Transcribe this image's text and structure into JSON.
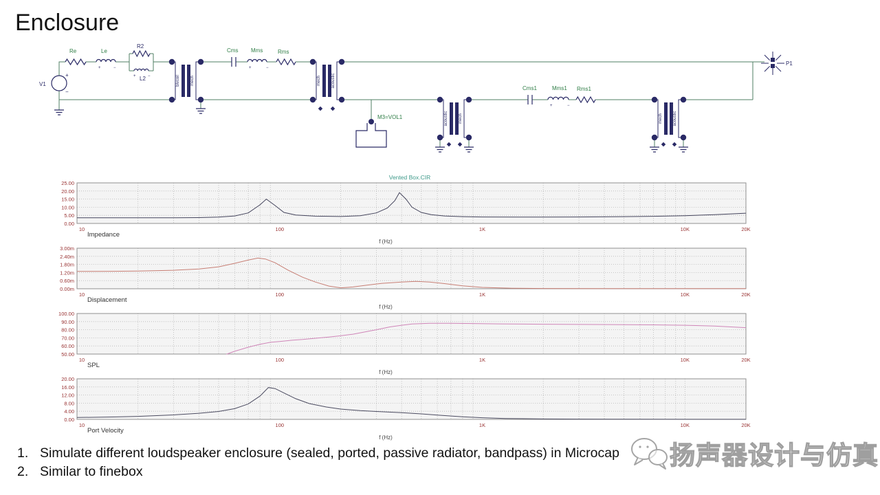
{
  "slide": {
    "title": "Enclosure"
  },
  "bullets": [
    {
      "num": "1.",
      "text": "Simulate different loudspeaker enclosure (sealed, ported, passive radiator, bandpass) in Microcap"
    },
    {
      "num": "2.",
      "text": "Similar to finebox"
    }
  ],
  "watermark": {
    "text": "扬声器设计与仿真",
    "logo": "wechat-bubbles-icon",
    "stroke_color": "#9f9f9f"
  },
  "circuit": {
    "source_label": "V1",
    "components": {
      "re": "Re",
      "le": "Le",
      "r2": "R2",
      "l2": "L2",
      "cms": "Cms",
      "mms": "Mms",
      "rms": "Rms",
      "cms1": "Cms1",
      "mms1": "Mms1",
      "rms1": "Rms1",
      "vol": "M3=VOL1",
      "p1": "P1"
    },
    "transformers": [
      {
        "left": "blvcoil",
        "right": "mech"
      },
      {
        "left": "mech",
        "right": "acoustic"
      },
      {
        "left": "acoustic",
        "right": "mech"
      },
      {
        "left": "mech",
        "right": "acoustic"
      }
    ],
    "colors": {
      "wire": "#4f7f63",
      "component": "#2a2a66",
      "label_green": "#2f7d46",
      "label_navy": "#2a2a66"
    }
  },
  "chart_colors": {
    "tick": "#993333",
    "title": "#3f9a8a",
    "grid": "#b8b8b8",
    "border": "#8f8f8f",
    "plot_bg": "#f4f4f4",
    "name_label": "#333333"
  },
  "chart_data": [
    {
      "type": "line",
      "name": "Impedance",
      "plot_title": "Vented Box.CIR",
      "xlabel": "f (Hz)",
      "x_scale": "log",
      "xlim": [
        10,
        20000
      ],
      "ylim": [
        0,
        25
      ],
      "x_ticks": [
        "10",
        "100",
        "1K",
        "10K",
        "20K"
      ],
      "x_tick_values": [
        10,
        100,
        1000,
        10000,
        20000
      ],
      "y_ticks": [
        "25.00",
        "20.00",
        "15.00",
        "10.00",
        "5.00",
        "0.00"
      ],
      "line_color": "#44445c",
      "points": [
        [
          10,
          3.5
        ],
        [
          20,
          3.5
        ],
        [
          30,
          3.5
        ],
        [
          40,
          3.6
        ],
        [
          50,
          3.9
        ],
        [
          60,
          4.6
        ],
        [
          70,
          6.5
        ],
        [
          80,
          11.5
        ],
        [
          86,
          15
        ],
        [
          95,
          11
        ],
        [
          105,
          6.8
        ],
        [
          120,
          5.2
        ],
        [
          150,
          4.5
        ],
        [
          200,
          4.3
        ],
        [
          250,
          4.8
        ],
        [
          300,
          6.5
        ],
        [
          340,
          9.5
        ],
        [
          370,
          14
        ],
        [
          390,
          19
        ],
        [
          420,
          15
        ],
        [
          450,
          10
        ],
        [
          500,
          6.8
        ],
        [
          560,
          5.4
        ],
        [
          650,
          4.6
        ],
        [
          800,
          4.2
        ],
        [
          1000,
          4.0
        ],
        [
          1500,
          3.9
        ],
        [
          2000,
          3.9
        ],
        [
          3000,
          4.0
        ],
        [
          5000,
          4.2
        ],
        [
          7000,
          4.4
        ],
        [
          10000,
          4.8
        ],
        [
          14000,
          5.4
        ],
        [
          20000,
          6.3
        ]
      ]
    },
    {
      "type": "line",
      "name": "Displacement",
      "xlabel": "f (Hz)",
      "x_scale": "log",
      "xlim": [
        10,
        20000
      ],
      "ylim": [
        0,
        3
      ],
      "x_ticks": [
        "10",
        "100",
        "1K",
        "10K",
        "20K"
      ],
      "x_tick_values": [
        10,
        100,
        1000,
        10000,
        20000
      ],
      "y_ticks": [
        "3.00m",
        "2.40m",
        "1.80m",
        "1.20m",
        "0.60m",
        "0.00m"
      ],
      "line_color": "#c77e74",
      "points": [
        [
          10,
          1.28
        ],
        [
          15,
          1.29
        ],
        [
          20,
          1.31
        ],
        [
          30,
          1.37
        ],
        [
          40,
          1.46
        ],
        [
          50,
          1.62
        ],
        [
          60,
          1.88
        ],
        [
          70,
          2.12
        ],
        [
          78,
          2.27
        ],
        [
          85,
          2.2
        ],
        [
          95,
          1.92
        ],
        [
          110,
          1.38
        ],
        [
          130,
          0.85
        ],
        [
          150,
          0.5
        ],
        [
          175,
          0.2
        ],
        [
          200,
          0.07
        ],
        [
          230,
          0.13
        ],
        [
          270,
          0.27
        ],
        [
          320,
          0.4
        ],
        [
          400,
          0.5
        ],
        [
          470,
          0.55
        ],
        [
          550,
          0.5
        ],
        [
          650,
          0.38
        ],
        [
          800,
          0.22
        ],
        [
          1000,
          0.1
        ],
        [
          1400,
          0.04
        ],
        [
          2000,
          0.02
        ],
        [
          4000,
          0.01
        ],
        [
          10000,
          0.01
        ],
        [
          20000,
          0.01
        ]
      ]
    },
    {
      "type": "line",
      "name": "SPL",
      "xlabel": "f (Hz)",
      "x_scale": "log",
      "xlim": [
        10,
        20000
      ],
      "ylim": [
        50,
        100
      ],
      "x_ticks": [
        "10",
        "100",
        "1K",
        "10K",
        "20K"
      ],
      "x_tick_values": [
        10,
        100,
        1000,
        10000,
        20000
      ],
      "y_ticks": [
        "100.00",
        "90.00",
        "80.00",
        "70.00",
        "60.00",
        "50.00"
      ],
      "line_color": "#cf85b8",
      "points": [
        [
          52,
          46
        ],
        [
          55,
          50
        ],
        [
          60,
          53.5
        ],
        [
          65,
          56
        ],
        [
          70,
          58.5
        ],
        [
          80,
          62
        ],
        [
          90,
          64.5
        ],
        [
          100,
          65.5
        ],
        [
          115,
          67
        ],
        [
          130,
          68
        ],
        [
          150,
          69.5
        ],
        [
          175,
          71
        ],
        [
          200,
          72.5
        ],
        [
          230,
          74.5
        ],
        [
          260,
          77
        ],
        [
          300,
          80
        ],
        [
          350,
          83.5
        ],
        [
          400,
          85.5
        ],
        [
          450,
          87
        ],
        [
          550,
          88
        ],
        [
          700,
          88
        ],
        [
          900,
          87.6
        ],
        [
          1200,
          87.2
        ],
        [
          2000,
          86.8
        ],
        [
          3000,
          86.5
        ],
        [
          5000,
          86.3
        ],
        [
          7000,
          86
        ],
        [
          10000,
          85.5
        ],
        [
          14000,
          84.5
        ],
        [
          20000,
          82.5
        ]
      ]
    },
    {
      "type": "line",
      "name": "Port Velocity",
      "xlabel": "f (Hz)",
      "x_scale": "log",
      "xlim": [
        10,
        20000
      ],
      "ylim": [
        0,
        20
      ],
      "x_ticks": [
        "10",
        "100",
        "1K",
        "10K",
        "20K"
      ],
      "x_tick_values": [
        10,
        100,
        1000,
        10000,
        20000
      ],
      "y_ticks": [
        "20.00",
        "16.00",
        "12.00",
        "8.00",
        "4.00",
        "0.00"
      ],
      "line_color": "#4b4b60",
      "points": [
        [
          10,
          0.9
        ],
        [
          15,
          1.2
        ],
        [
          20,
          1.5
        ],
        [
          30,
          2.2
        ],
        [
          40,
          3.0
        ],
        [
          50,
          3.9
        ],
        [
          60,
          5.3
        ],
        [
          70,
          7.6
        ],
        [
          80,
          11.5
        ],
        [
          88,
          15.7
        ],
        [
          95,
          15.2
        ],
        [
          105,
          13
        ],
        [
          120,
          10.2
        ],
        [
          140,
          7.8
        ],
        [
          170,
          6.1
        ],
        [
          200,
          5.1
        ],
        [
          250,
          4.3
        ],
        [
          300,
          3.9
        ],
        [
          400,
          3.3
        ],
        [
          500,
          2.7
        ],
        [
          600,
          2.1
        ],
        [
          800,
          1.3
        ],
        [
          1000,
          0.8
        ],
        [
          1300,
          0.45
        ],
        [
          2000,
          0.2
        ],
        [
          3000,
          0.12
        ],
        [
          5000,
          0.08
        ],
        [
          10000,
          0.05
        ],
        [
          20000,
          0.03
        ]
      ]
    }
  ]
}
